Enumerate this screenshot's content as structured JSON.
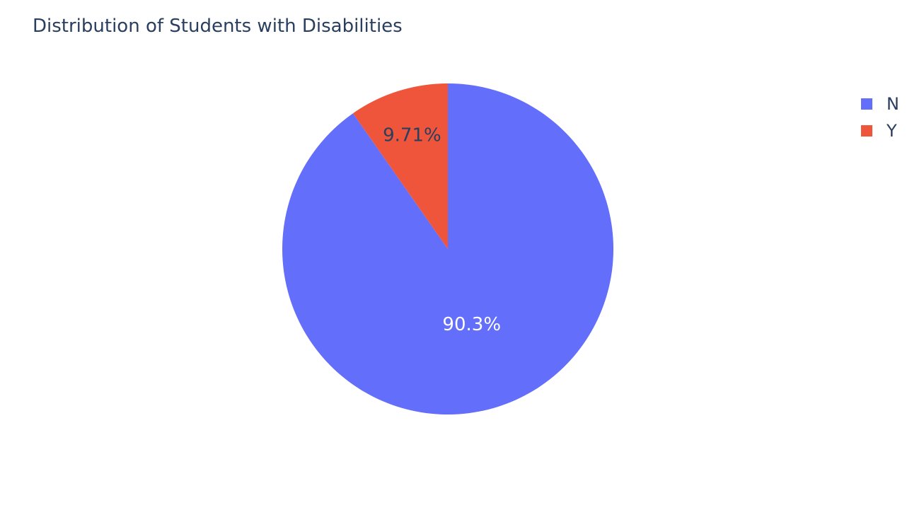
{
  "chart_data": {
    "type": "pie",
    "title": "Distribution of Students with Disabilities",
    "categories": [
      "N",
      "Y"
    ],
    "values": [
      90.29,
      9.71
    ],
    "slice_labels": [
      "90.3%",
      "9.71%"
    ],
    "colors": [
      "#636efa",
      "#ef553b"
    ],
    "label_colors": [
      "#ffffff",
      "#2a3f5f"
    ],
    "direction": "clockwise",
    "start_angle": "top",
    "legend": {
      "position": "top-right",
      "entries": [
        "N",
        "Y"
      ]
    }
  }
}
